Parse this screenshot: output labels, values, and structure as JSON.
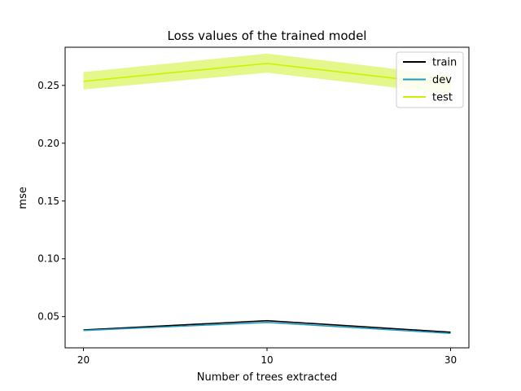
{
  "chart_data": {
    "type": "line",
    "title": "Loss values of the trained model",
    "xlabel": "Number of trees extracted",
    "ylabel": "mse",
    "categories": [
      "20",
      "10",
      "30"
    ],
    "ylim": [
      0.023,
      0.283
    ],
    "yticks": [
      "0.05",
      "0.10",
      "0.15",
      "0.20",
      "0.25"
    ],
    "ytick_values": [
      0.05,
      0.1,
      0.15,
      0.2,
      0.25
    ],
    "grid": false,
    "legend_position": "top-right",
    "series": [
      {
        "name": "train",
        "color": "#000000",
        "values": [
          0.0385,
          0.0465,
          0.0365
        ]
      },
      {
        "name": "dev",
        "color": "#1f9bbf",
        "values": [
          0.038,
          0.045,
          0.0355
        ]
      },
      {
        "name": "test",
        "color": "#ccf200",
        "band_color": "#e3f78a",
        "values": [
          0.2535,
          0.269,
          0.2505
        ],
        "band_lower": [
          0.2465,
          0.261,
          0.2425
        ],
        "band_upper": [
          0.2615,
          0.2775,
          0.2585
        ]
      }
    ]
  }
}
